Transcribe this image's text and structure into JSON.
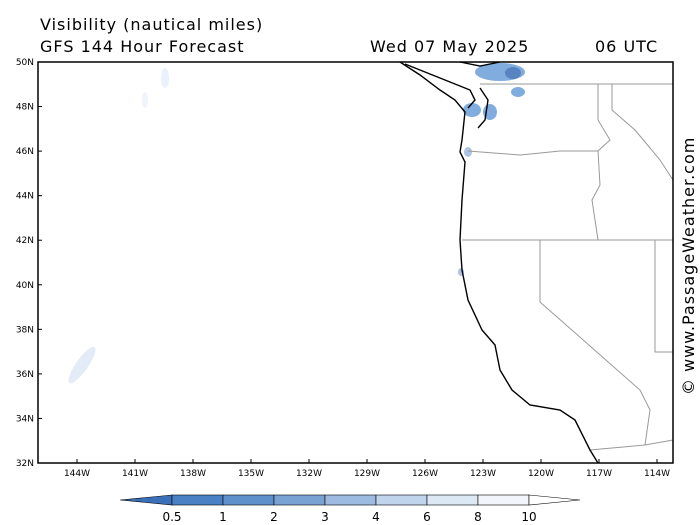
{
  "title": "Visibility (nautical miles)",
  "subtitle": "GFS 144 Hour Forecast",
  "date": "Wed 07 May 2025",
  "time": "06 UTC",
  "watermark": "© www.PassageWeather.com",
  "lat_labels": [
    "50N",
    "48N",
    "46N",
    "44N",
    "42N",
    "40N",
    "38N",
    "36N",
    "34N",
    "32N"
  ],
  "lon_labels": [
    "144W",
    "141W",
    "138W",
    "135W",
    "132W",
    "129W",
    "126W",
    "123W",
    "120W",
    "117W",
    "114W"
  ],
  "colorbar": {
    "labels": [
      0.5,
      1,
      2,
      3,
      4,
      6,
      8,
      10
    ],
    "colors": [
      "#3a70b8",
      "#4a80c4",
      "#5f90cc",
      "#7aa3d4",
      "#9dbbe0",
      "#c0d4ec",
      "#dde8f5",
      "#f2f6fc",
      "#ffffff"
    ]
  }
}
